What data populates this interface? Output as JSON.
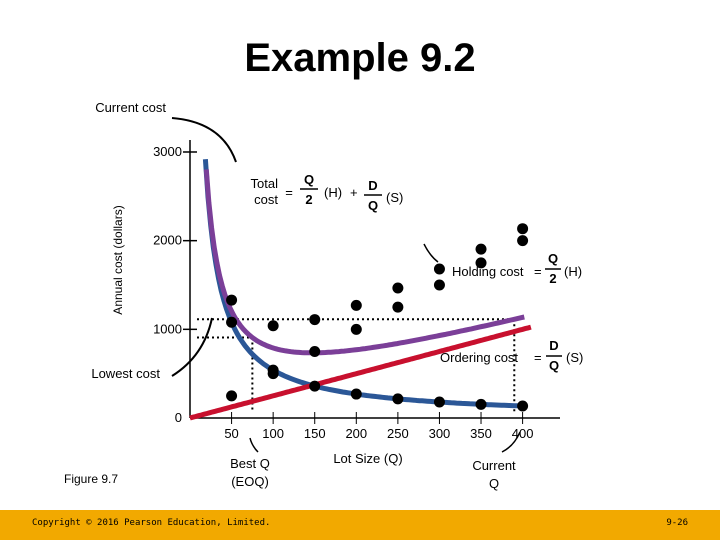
{
  "slide": {
    "title": "Example 9.2",
    "figure_label": "Figure 9.7",
    "copyright": "Copyright © 2016 Pearson Education, Limited.",
    "page_number": "9-26"
  },
  "chart_data": {
    "type": "line",
    "title": "",
    "xlabel": "Lot Size (Q)",
    "ylabel": "Annual cost (dollars)",
    "xlim": [
      0,
      400
    ],
    "ylim": [
      0,
      3000
    ],
    "x_ticks": [
      50,
      100,
      150,
      200,
      250,
      300,
      350,
      400
    ],
    "y_ticks": [
      0,
      1000,
      2000,
      3000
    ],
    "grid": false,
    "colors": {
      "total": "#7b3f98",
      "holding": "#c8102e",
      "ordering": "#2b5797",
      "marker": "#000000"
    },
    "series": [
      {
        "name": "Holding cost",
        "x": [
          50,
          100,
          150,
          200,
          250,
          300,
          350,
          400
        ],
        "values": [
          250,
          500,
          750,
          1000,
          1250,
          1500,
          1750,
          2000
        ]
      },
      {
        "name": "Ordering cost",
        "x": [
          50,
          100,
          150,
          200,
          250,
          300,
          350,
          400
        ],
        "values": [
          1080,
          540,
          360,
          270,
          216,
          180,
          154,
          135
        ]
      },
      {
        "name": "Total cost",
        "x": [
          50,
          100,
          150,
          200,
          250,
          300,
          350,
          400
        ],
        "values": [
          1330,
          1040,
          1110,
          1270,
          1466,
          1680,
          1904,
          2135
        ]
      }
    ],
    "annotations": {
      "current_cost": "Current cost",
      "lowest_cost": "Lowest cost",
      "best_q_line1": "Best Q",
      "best_q_line2": "(EOQ)",
      "current_q_line1": "Current",
      "current_q_line2": "Q",
      "total_cost_formula": {
        "label1": "Total",
        "label2": "cost",
        "eq": "=",
        "num": "Q",
        "den": "2",
        "h": "(H)",
        "plus": "+",
        "num2": "D",
        "den2": "Q",
        "s": "(S)"
      },
      "holding_cost_formula": {
        "label": "Holding cost",
        "eq": "=",
        "num": "Q",
        "den": "2",
        "h": "(H)"
      },
      "ordering_cost_formula": {
        "label": "Ordering cost",
        "eq": "=",
        "num": "D",
        "den": "Q",
        "s": "(S)"
      }
    }
  }
}
